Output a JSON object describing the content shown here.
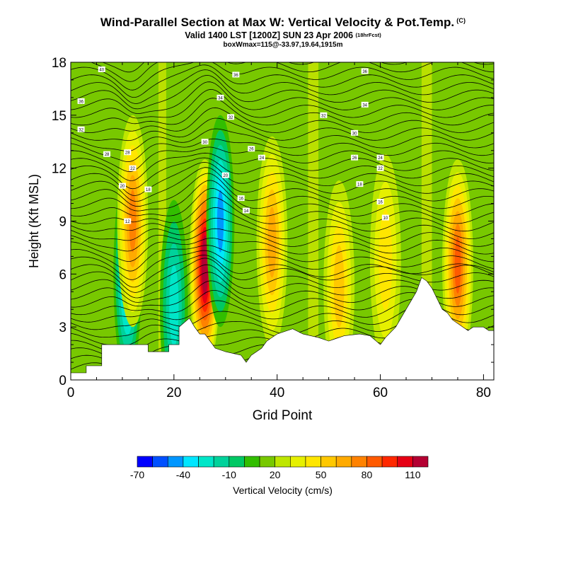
{
  "header": {
    "title": "Wind-Parallel Section at Max W: Vertical Velocity & Pot.Temp.",
    "title_mark": "(C)",
    "valid": "Valid 1400 LST [1200Z] SUN 23 Apr 2006",
    "valid_note": "(18hrFcst)",
    "box_info": "boxWmax=115@-33.97,19.64,1915m"
  },
  "chart_data": {
    "type": "heatmap",
    "xlabel": "Grid Point",
    "ylabel": "Height (Kft MSL)",
    "xlim": [
      0,
      82
    ],
    "ylim": [
      0,
      18
    ],
    "x_ticks": [
      0,
      20,
      40,
      60,
      80
    ],
    "y_ticks": [
      0,
      3,
      6,
      9,
      12,
      15,
      18
    ],
    "terrain_kft": [
      [
        0,
        0.4
      ],
      [
        3,
        0.4
      ],
      [
        3,
        0.8
      ],
      [
        6,
        0.8
      ],
      [
        6,
        2.0
      ],
      [
        15,
        2.0
      ],
      [
        15,
        1.6
      ],
      [
        19,
        1.6
      ],
      [
        19,
        2.0
      ],
      [
        21,
        2.0
      ],
      [
        21,
        3.0
      ],
      [
        23,
        3.5
      ],
      [
        24,
        3.0
      ],
      [
        25,
        2.6
      ],
      [
        26,
        2.6
      ],
      [
        27,
        2.2
      ],
      [
        28,
        1.8
      ],
      [
        30,
        1.6
      ],
      [
        33,
        1.4
      ],
      [
        34,
        1.0
      ],
      [
        35,
        1.4
      ],
      [
        37,
        1.8
      ],
      [
        38,
        2.2
      ],
      [
        40,
        2.6
      ],
      [
        43,
        2.9
      ],
      [
        45,
        2.6
      ],
      [
        48,
        2.4
      ],
      [
        50,
        2.2
      ],
      [
        53,
        2.5
      ],
      [
        56,
        2.6
      ],
      [
        58,
        2.5
      ],
      [
        60,
        2.0
      ],
      [
        61,
        2.4
      ],
      [
        63,
        3.0
      ],
      [
        65,
        4.0
      ],
      [
        67,
        5.0
      ],
      [
        68,
        5.8
      ],
      [
        69,
        5.6
      ],
      [
        70,
        5.2
      ],
      [
        71,
        4.6
      ],
      [
        72,
        4.0
      ],
      [
        73,
        3.8
      ],
      [
        74,
        3.4
      ],
      [
        75,
        3.2
      ],
      [
        76,
        3.0
      ],
      [
        77,
        2.8
      ],
      [
        78,
        3.0
      ],
      [
        80,
        3.0
      ],
      [
        81,
        2.8
      ],
      [
        82,
        2.8
      ]
    ],
    "w_features": [
      {
        "x": 11,
        "y": 6.0,
        "value": -60
      },
      {
        "x": 12,
        "y": 9.0,
        "value": 60
      },
      {
        "x": 20,
        "y": 4.2,
        "value": -40
      },
      {
        "x": 26,
        "y": 6.5,
        "value": 110
      },
      {
        "x": 29,
        "y": 9.0,
        "value": -60
      },
      {
        "x": 39,
        "y": 7.8,
        "value": 50
      },
      {
        "x": 52,
        "y": 5.3,
        "value": 40
      },
      {
        "x": 61,
        "y": 6.8,
        "value": 30
      },
      {
        "x": 75,
        "y": 6.5,
        "value": 70
      }
    ],
    "theta_labels": [
      "40",
      "36",
      "36",
      "36",
      "34",
      "34",
      "32",
      "32",
      "32",
      "30",
      "30",
      "28",
      "28",
      "26",
      "26",
      "24",
      "24",
      "22",
      "22",
      "20",
      "20",
      "18",
      "18",
      "16",
      "16",
      "14",
      "12",
      "10"
    ],
    "colorbar": {
      "label": "Vertical Velocity (cm/s)",
      "tick_labels": [
        "-70",
        "-40",
        "-10",
        "20",
        "50",
        "80",
        "110"
      ],
      "colors": [
        "#0000ff",
        "#0050ff",
        "#0096ff",
        "#00e6ff",
        "#00e6c8",
        "#00d29b",
        "#00c864",
        "#32be00",
        "#78c800",
        "#bee600",
        "#e6f000",
        "#ffe600",
        "#ffc800",
        "#ffaa00",
        "#ff8200",
        "#ff5a00",
        "#ff2800",
        "#e60014",
        "#b40032"
      ]
    }
  }
}
